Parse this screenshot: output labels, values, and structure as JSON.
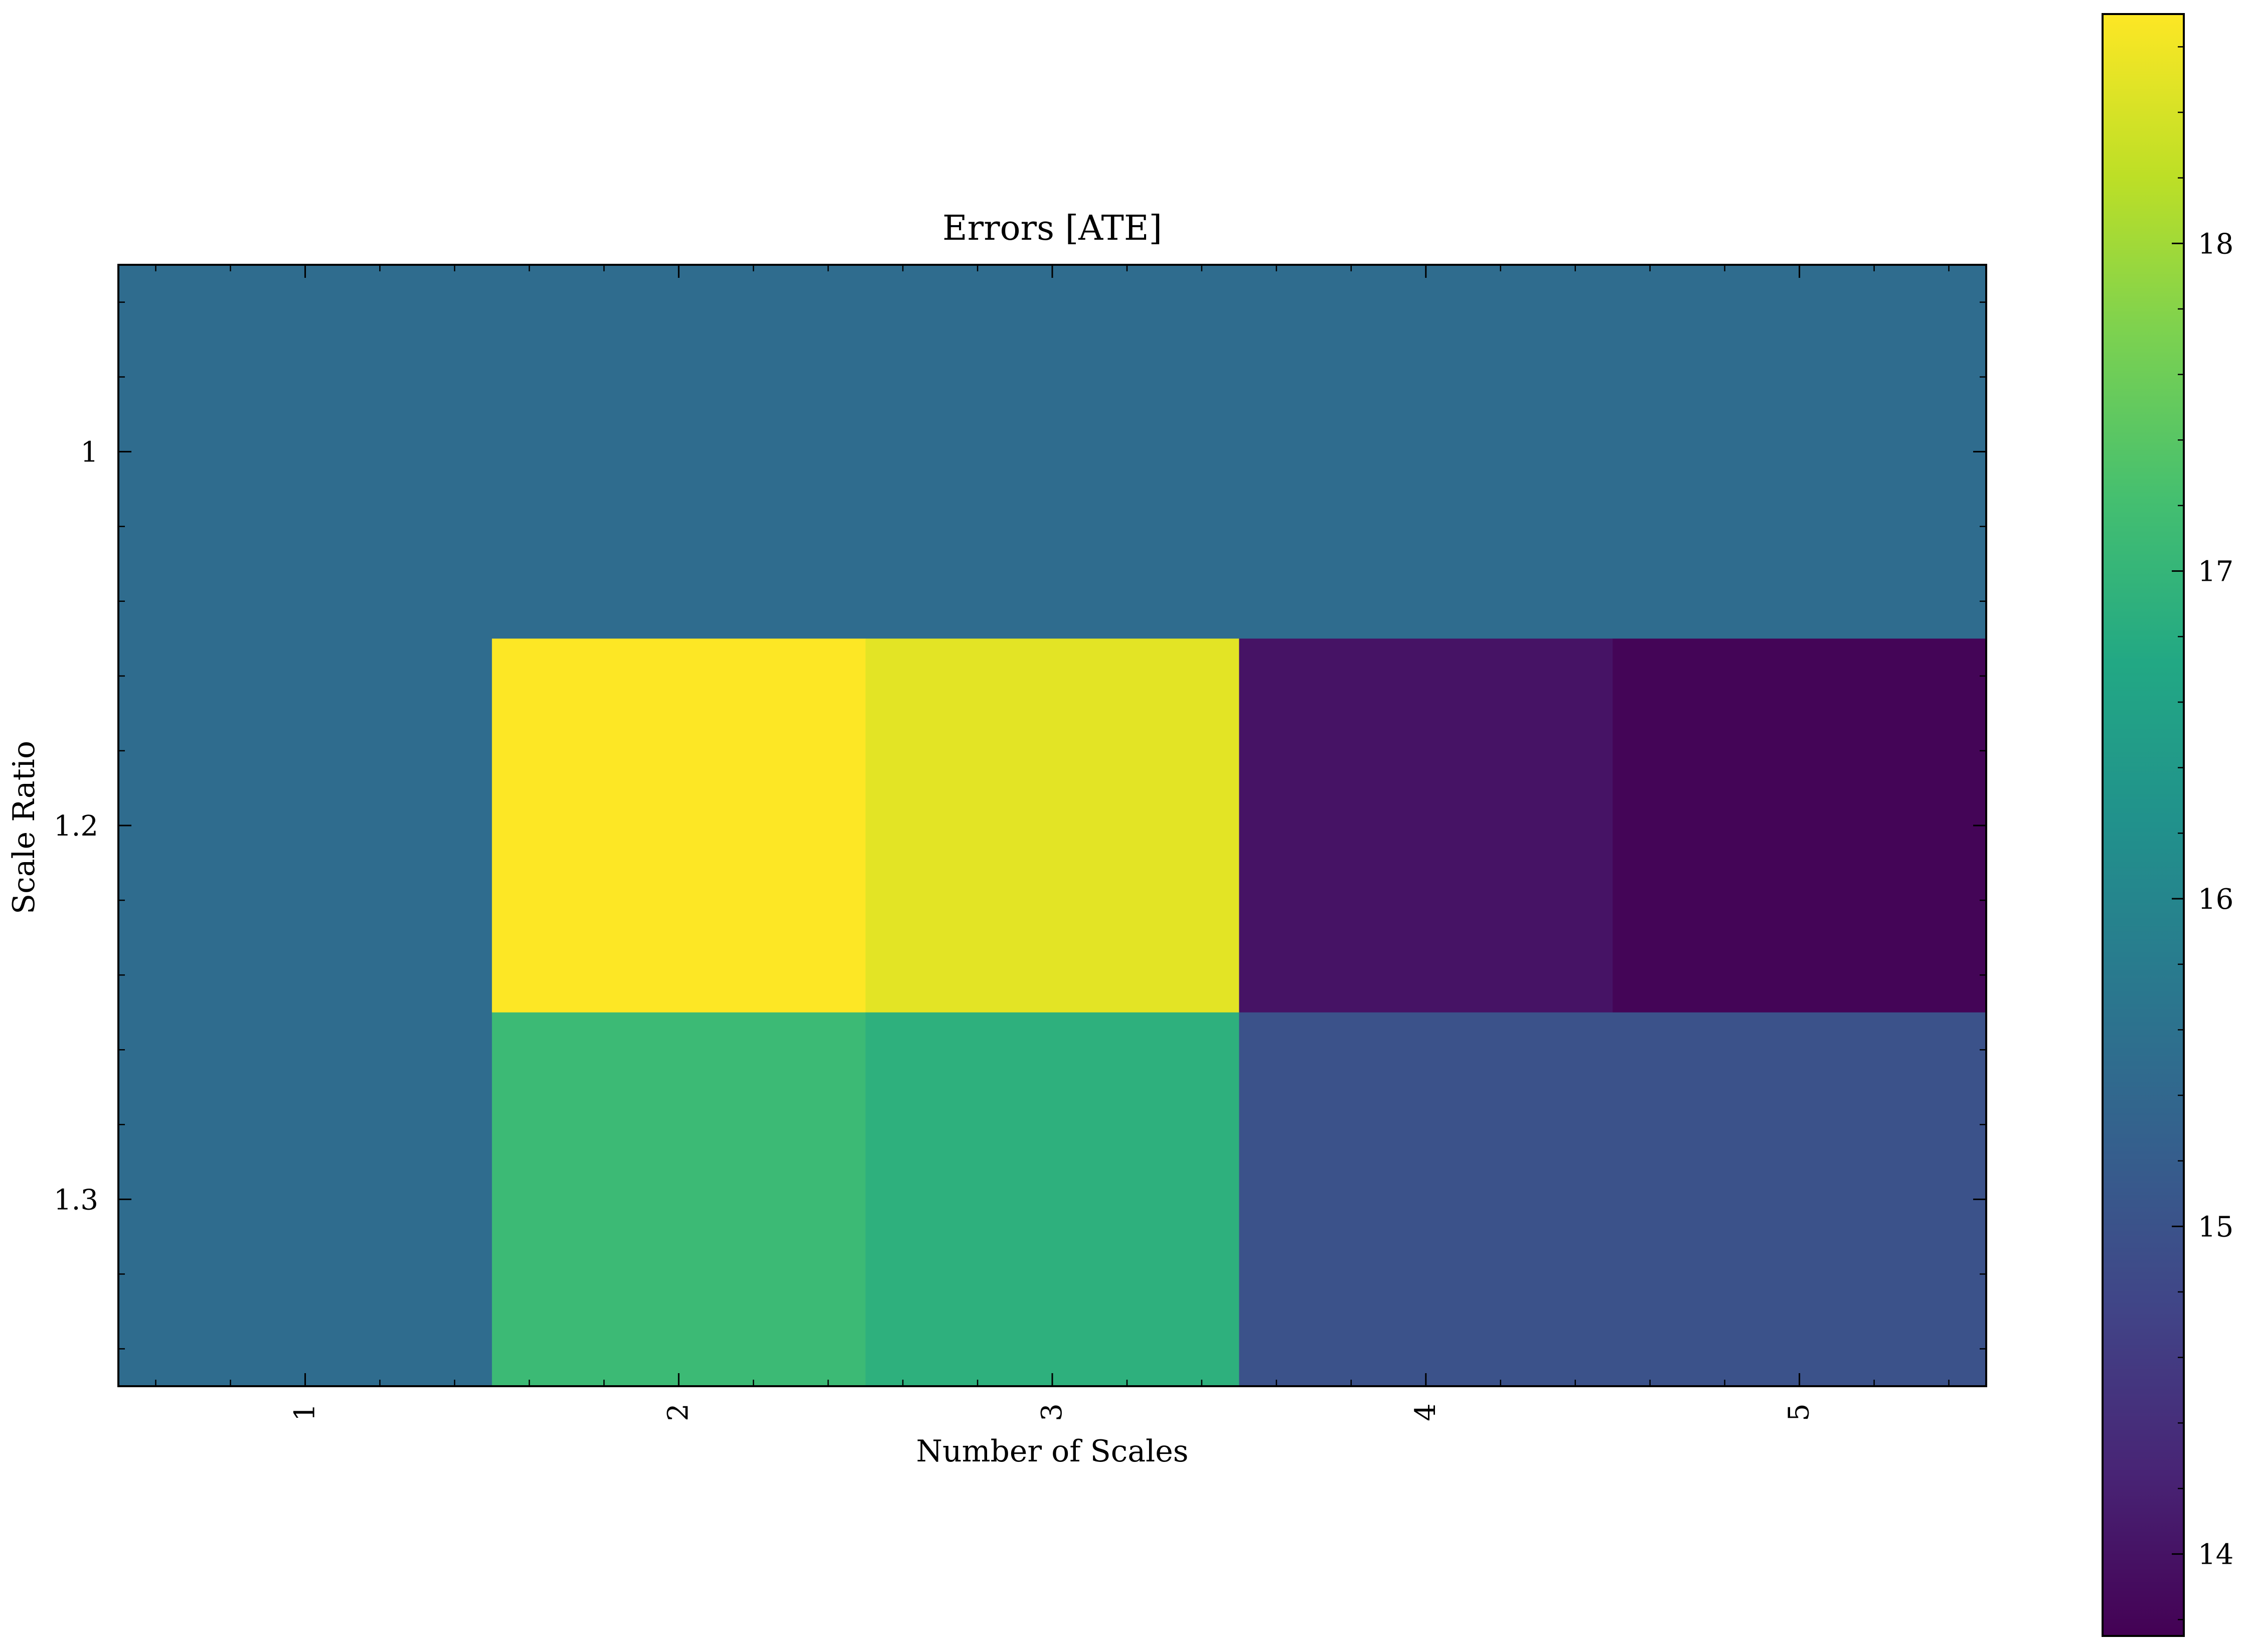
{
  "chart_data": {
    "type": "heatmap",
    "title": "Errors [ATE]",
    "xlabel": "Number of Scales",
    "ylabel": "Scale Ratio",
    "x_categories": [
      "1",
      "2",
      "3",
      "4",
      "5"
    ],
    "y_categories": [
      "1",
      "1.2",
      "1.3"
    ],
    "values": [
      [
        15.5,
        15.5,
        15.5,
        15.5,
        15.5
      ],
      [
        15.5,
        18.7,
        18.5,
        14.0,
        13.8
      ],
      [
        15.5,
        17.1,
        16.9,
        15.0,
        15.0
      ]
    ],
    "colormap": "viridis",
    "colorbar": {
      "range": [
        13.75,
        18.7
      ],
      "ticks": [
        14,
        15,
        16,
        17,
        18
      ],
      "tick_labels": [
        "14",
        "15",
        "16",
        "17",
        "18"
      ]
    },
    "grid": false
  }
}
